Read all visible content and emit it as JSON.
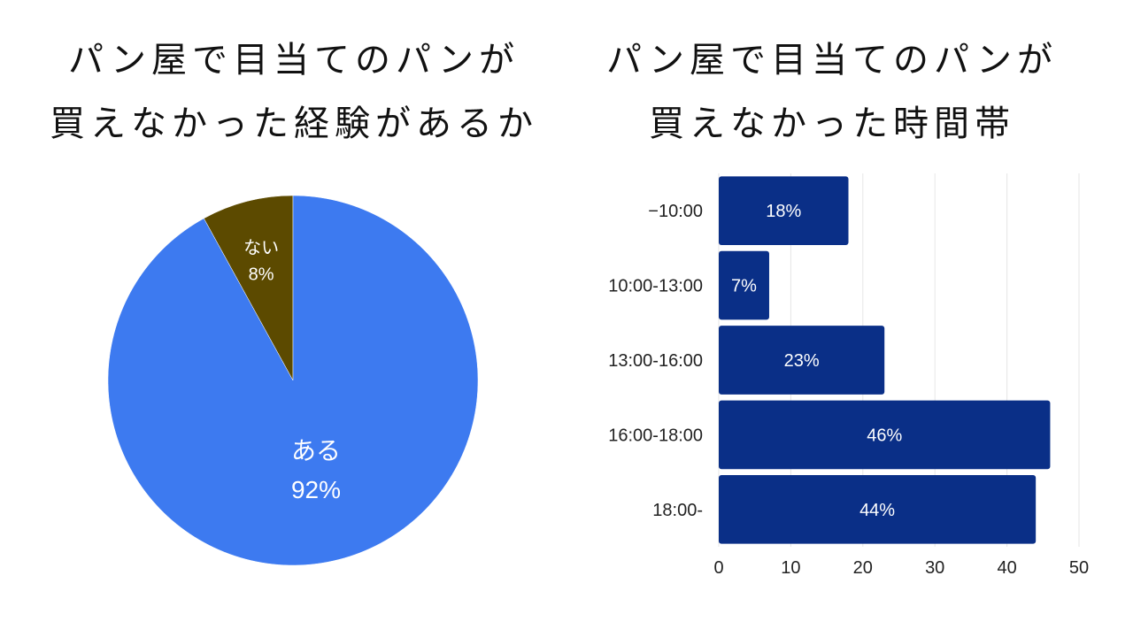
{
  "left": {
    "title_line1": "パン屋で目当てのパンが",
    "title_line2": "買えなかった経験があるか"
  },
  "right": {
    "title_line1": "パン屋で目当てのパンが",
    "title_line2": "買えなかった時間帯"
  },
  "chart_data": [
    {
      "type": "pie",
      "title": "パン屋で目当てのパンが買えなかった経験があるか",
      "slices": [
        {
          "label": "ない",
          "value": 8,
          "value_label": "8%",
          "color": "#5c4a00"
        },
        {
          "label": "ある",
          "value": 92,
          "value_label": "92%",
          "color": "#3d7af0"
        }
      ]
    },
    {
      "type": "bar",
      "orientation": "horizontal",
      "title": "パン屋で目当てのパンが買えなかった時間帯",
      "categories": [
        "−10:00",
        "10:00-13:00",
        "13:00-16:00",
        "16:00-18:00",
        "18:00-"
      ],
      "values": [
        18,
        7,
        23,
        46,
        44
      ],
      "value_labels": [
        "18%",
        "7%",
        "23%",
        "46%",
        "44%"
      ],
      "xlim": [
        0,
        50
      ],
      "xticks": [
        "0",
        "10",
        "20",
        "30",
        "40",
        "50"
      ],
      "grid": true,
      "bar_color": "#0a2f87"
    }
  ]
}
